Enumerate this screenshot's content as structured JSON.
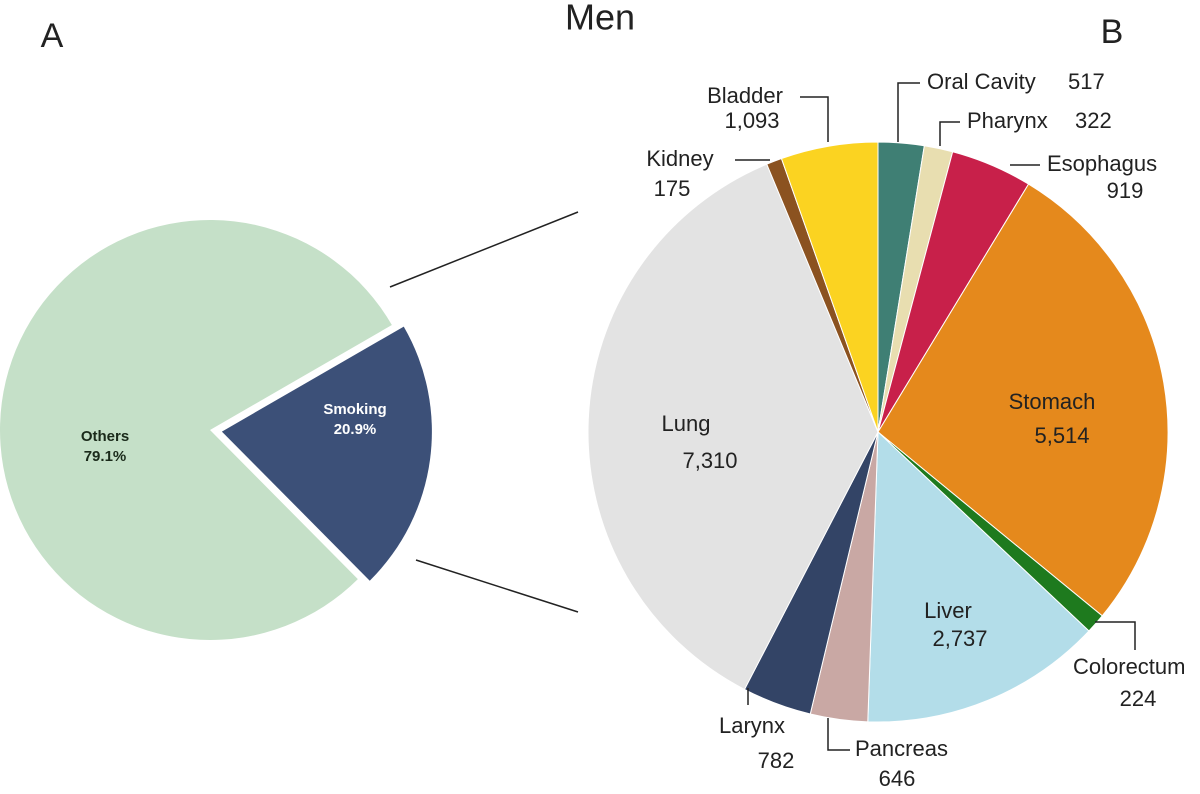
{
  "chart_data": [
    {
      "type": "pie",
      "panel": "A",
      "categories": [
        "Smoking",
        "Others"
      ],
      "values": [
        20.9,
        79.1
      ],
      "value_labels": [
        "20.9%",
        "79.1%"
      ],
      "colors": [
        "#3c5078",
        "#c5e0c8"
      ]
    },
    {
      "type": "pie",
      "panel": "B",
      "title": "Men",
      "categories": [
        "Oral Cavity",
        "Pharynx",
        "Esophagus",
        "Stomach",
        "Colorectum",
        "Liver",
        "Pancreas",
        "Larynx",
        "Lung",
        "Kidney",
        "Bladder"
      ],
      "values": [
        517,
        322,
        919,
        5514,
        224,
        2737,
        646,
        782,
        7310,
        175,
        1093
      ],
      "value_labels": [
        "517",
        "322",
        "919",
        "5,514",
        "224",
        "2,737",
        "646",
        "782",
        "7,310",
        "175",
        "1,093"
      ],
      "colors": [
        "#3f7f74",
        "#e8deb0",
        "#c8204a",
        "#e5891c",
        "#1e7a1e",
        "#b3dde9",
        "#c9a8a4",
        "#334466",
        "#e3e3e3",
        "#8b5220",
        "#fbd321"
      ]
    }
  ]
}
